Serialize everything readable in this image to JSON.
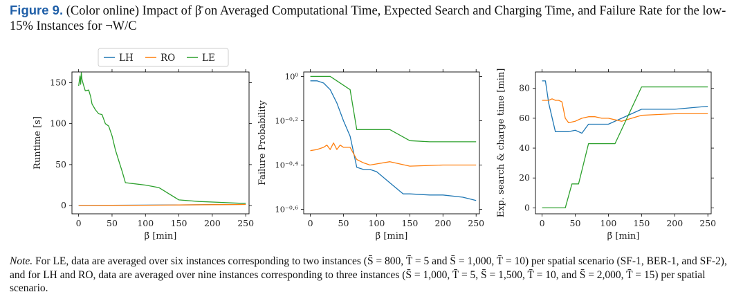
{
  "caption": {
    "figure_label": "Figure 9.",
    "text": "(Color online) Impact of β̄ on Averaged Computational Time, Expected Search and Charging Time, and Failure Rate for the low-15% Instances for ¬W/C"
  },
  "note": {
    "label": "Note.",
    "text": "For LE, data are averaged over six instances corresponding to two instances (S̄ = 800, T̄ = 5 and S̄ = 1,000, T̄ = 10) per spatial scenario (SF-1, BER-1, and SF-2), and for LH and RO, data are averaged over nine instances corresponding to three instances (S̄ = 1,000, T̄ = 5, S̄ = 1,500, T̄ = 10, and S̄ = 2,000, T̄ = 15) per spatial scenario."
  },
  "legend": [
    "LH",
    "RO",
    "LE"
  ],
  "colors": {
    "LH": "#1f77b4",
    "RO": "#ff7f0e",
    "LE": "#2ca02c"
  },
  "chart_data": [
    {
      "type": "line",
      "xlabel": "β̄ [min]",
      "ylabel": "Runtime [s]",
      "xlim": [
        -10,
        255
      ],
      "ylim": [
        -10,
        163
      ],
      "xticks": [
        0,
        50,
        100,
        150,
        200,
        250
      ],
      "yticks": [
        0,
        50,
        100,
        150
      ],
      "ytick_labels": [
        "0",
        "50",
        "100",
        "150"
      ],
      "log_y": false,
      "series": [
        {
          "name": "LH",
          "x": [
            0,
            50,
            100,
            150,
            200,
            250
          ],
          "y": [
            0.3,
            0.4,
            0.6,
            0.9,
            1.2,
            1.5
          ]
        },
        {
          "name": "RO",
          "x": [
            0,
            50,
            100,
            150,
            200,
            250
          ],
          "y": [
            0.2,
            0.3,
            0.5,
            0.8,
            1.1,
            1.4
          ]
        },
        {
          "name": "LE",
          "x": [
            0,
            2,
            3,
            4,
            5,
            7,
            10,
            15,
            18,
            20,
            25,
            30,
            35,
            40,
            45,
            50,
            55,
            60,
            65,
            70,
            80,
            100,
            120,
            150,
            180,
            210,
            240,
            250
          ],
          "y": [
            146,
            158,
            148,
            162,
            154,
            148,
            140,
            141,
            133,
            124,
            117,
            112,
            111,
            100,
            97,
            85,
            68,
            55,
            42,
            28,
            27,
            25,
            22,
            7,
            5,
            4,
            3,
            3
          ]
        }
      ]
    },
    {
      "type": "line",
      "xlabel": "β̄ [min]",
      "ylabel": "Failure Probability",
      "xlim": [
        -10,
        255
      ],
      "ylim": [
        -0.62,
        0.02
      ],
      "xticks": [
        0,
        50,
        100,
        150,
        200,
        250
      ],
      "yticks": [
        0,
        -0.2,
        -0.4,
        -0.6
      ],
      "ytick_labels": [
        "10⁰",
        "10⁻⁰·²",
        "10⁻⁰·⁴",
        "10⁻⁰·⁶"
      ],
      "log_y": true,
      "series": [
        {
          "name": "LH",
          "x": [
            0,
            10,
            20,
            30,
            40,
            50,
            60,
            70,
            80,
            90,
            100,
            120,
            140,
            150,
            180,
            200,
            230,
            250
          ],
          "y": [
            -0.02,
            -0.02,
            -0.03,
            -0.06,
            -0.12,
            -0.2,
            -0.27,
            -0.41,
            -0.42,
            -0.42,
            -0.43,
            -0.48,
            -0.53,
            -0.53,
            -0.535,
            -0.535,
            -0.545,
            -0.56
          ]
        },
        {
          "name": "RO",
          "x": [
            0,
            10,
            20,
            25,
            30,
            35,
            40,
            45,
            50,
            60,
            70,
            80,
            90,
            100,
            120,
            150,
            200,
            250
          ],
          "y": [
            -0.335,
            -0.33,
            -0.32,
            -0.31,
            -0.33,
            -0.3,
            -0.33,
            -0.31,
            -0.32,
            -0.32,
            -0.375,
            -0.39,
            -0.4,
            -0.395,
            -0.385,
            -0.405,
            -0.4,
            -0.4
          ]
        },
        {
          "name": "LE",
          "x": [
            0,
            30,
            40,
            60,
            70,
            80,
            100,
            110,
            120,
            150,
            180,
            210,
            240,
            250
          ],
          "y": [
            0,
            0,
            -0.02,
            -0.06,
            -0.24,
            -0.24,
            -0.24,
            -0.24,
            -0.24,
            -0.29,
            -0.295,
            -0.295,
            -0.295,
            -0.295
          ]
        }
      ]
    },
    {
      "type": "line",
      "xlabel": "β̄ [min]",
      "ylabel": "Exp. search & charge time [min]",
      "xlim": [
        -10,
        255
      ],
      "ylim": [
        -4,
        91
      ],
      "xticks": [
        0,
        50,
        100,
        150,
        200,
        250
      ],
      "yticks": [
        0,
        20,
        40,
        60,
        80
      ],
      "ytick_labels": [
        "0",
        "20",
        "40",
        "60",
        "80"
      ],
      "log_y": false,
      "series": [
        {
          "name": "LH",
          "x": [
            0,
            5,
            10,
            20,
            30,
            40,
            50,
            60,
            70,
            80,
            100,
            120,
            150,
            200,
            250
          ],
          "y": [
            85,
            85,
            70,
            51,
            51,
            51,
            52,
            50,
            56,
            56,
            56,
            60,
            66,
            66,
            68
          ]
        },
        {
          "name": "RO",
          "x": [
            0,
            10,
            15,
            20,
            25,
            30,
            35,
            40,
            50,
            60,
            70,
            80,
            90,
            100,
            120,
            150,
            200,
            250
          ],
          "y": [
            72,
            72,
            73,
            72,
            72,
            71,
            60,
            57,
            58,
            60,
            61,
            61,
            60,
            60,
            58,
            62,
            63,
            63
          ]
        },
        {
          "name": "LE",
          "x": [
            0,
            35,
            45,
            55,
            70,
            110,
            150,
            170,
            250
          ],
          "y": [
            0,
            0,
            16,
            16,
            43,
            43,
            81,
            81,
            81
          ]
        }
      ]
    }
  ]
}
